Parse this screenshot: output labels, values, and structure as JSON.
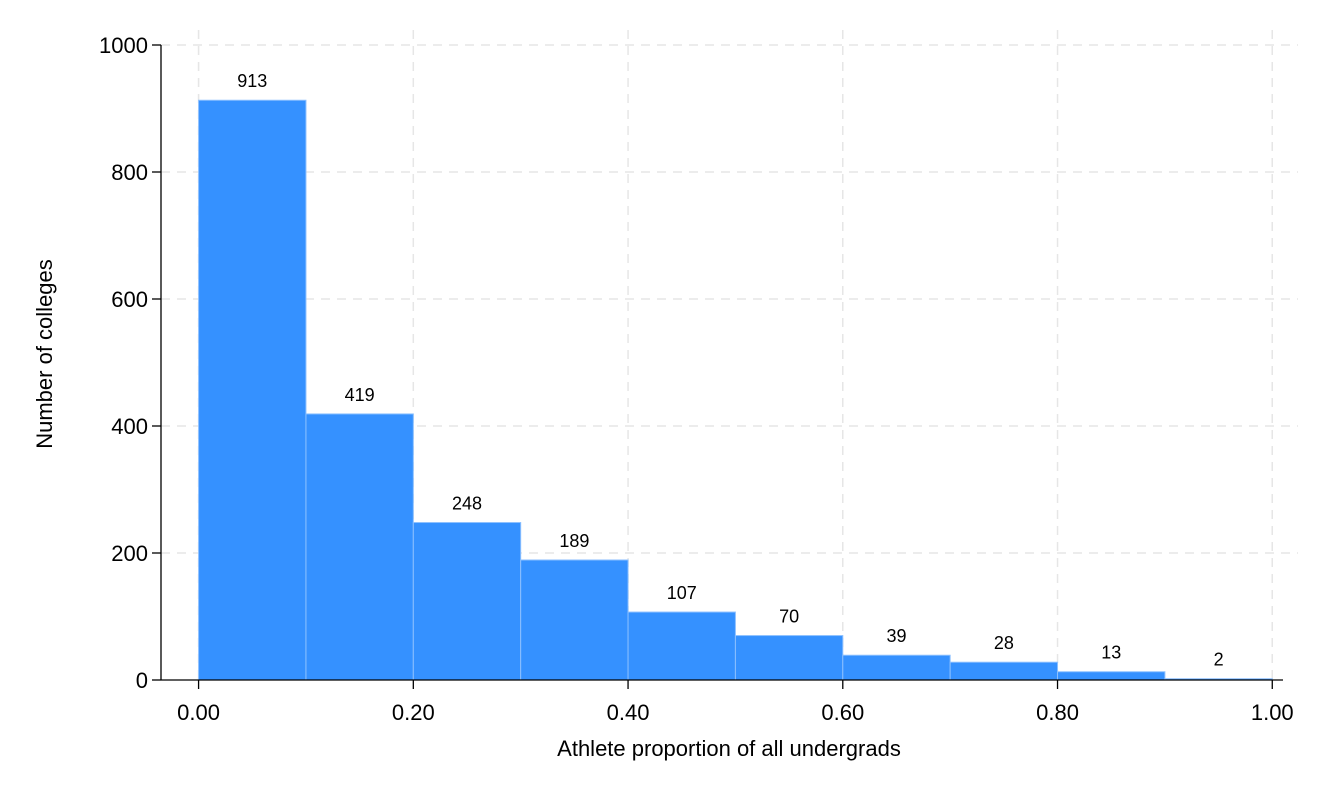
{
  "chart_data": {
    "type": "bar",
    "subtype": "histogram",
    "title": "",
    "xlabel": "Athlete proportion of all undergrads",
    "ylabel": "Number of colleges",
    "bin_edges": [
      0.0,
      0.1,
      0.2,
      0.3,
      0.4,
      0.5,
      0.6,
      0.7,
      0.8,
      0.9,
      1.0
    ],
    "values": [
      913,
      419,
      248,
      189,
      107,
      70,
      39,
      28,
      13,
      2
    ],
    "data_labels": [
      "913",
      "419",
      "248",
      "189",
      "107",
      "70",
      "39",
      "28",
      "13",
      "2"
    ],
    "xlim": [
      -0.035,
      1.01
    ],
    "ylim": [
      0,
      1000
    ],
    "xticks": [
      0.0,
      0.2,
      0.4,
      0.6,
      0.8,
      1.0
    ],
    "xtick_labels": [
      "0.00",
      "0.20",
      "0.40",
      "0.60",
      "0.80",
      "1.00"
    ],
    "yticks": [
      0,
      200,
      400,
      600,
      800,
      1000
    ],
    "ytick_labels": [
      "0",
      "200",
      "400",
      "600",
      "800",
      "1000"
    ],
    "grid": true,
    "legend": "none",
    "bar_color": "#3591ff",
    "bar_edge_color": "#8cc0ff"
  }
}
